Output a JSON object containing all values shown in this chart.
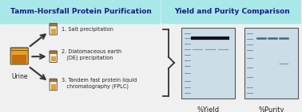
{
  "left_title": "Tamm-Horsfall Protein Purification",
  "right_title": "Yield and Purity Comparison",
  "header_bg": "#a8e8e8",
  "title_text_color": "#1a1a8c",
  "body_bg": "#f0f0f0",
  "items": [
    "1. Salt precipitation",
    "2. Diatomaceous earth\n   (DE) precipitation",
    "3. Tandem fast protein liquid\n   chromatography (FPLC)"
  ],
  "gel_label1": "%Yield",
  "gel_label2": "%Purity",
  "urine_label": "Urine",
  "tube_color": "#e8a020",
  "tube_dark": "#c07010",
  "urine_color": "#e8a020",
  "arrow_color": "#333333",
  "text_color": "#222222",
  "gel_bg": "#ccdde8",
  "gel_border": "#555555",
  "band_dark": "#101020",
  "band_mid": "#446688",
  "band_light": "#8899aa",
  "ladder_color": "#5577aa"
}
